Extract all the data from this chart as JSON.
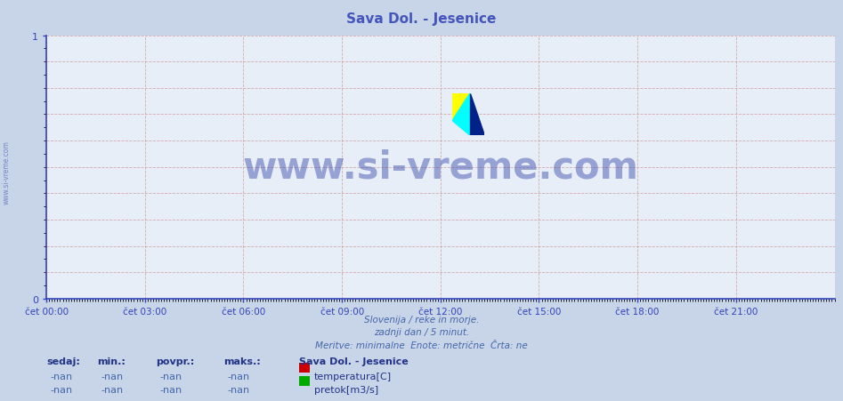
{
  "title": "Sava Dol. - Jesenice",
  "title_color": "#4455bb",
  "bg_color": "#c8d4e8",
  "plot_bg_color": "#e8eef8",
  "grid_color": "#cc9999",
  "grid_linestyle": "--",
  "xlim": [
    0,
    288
  ],
  "ylim": [
    0,
    1
  ],
  "yticks": [
    0,
    1
  ],
  "xtick_labels": [
    "čet 00:00",
    "čet 03:00",
    "čet 06:00",
    "čet 09:00",
    "čet 12:00",
    "čet 15:00",
    "čet 18:00",
    "čet 21:00"
  ],
  "xtick_positions": [
    0,
    36,
    72,
    108,
    144,
    180,
    216,
    252
  ],
  "axis_color": "#3344bb",
  "tick_color": "#3344bb",
  "watermark": "www.si-vreme.com",
  "watermark_color": "#3344aa",
  "side_text": "www.si-vreme.com",
  "subtitle_lines": [
    "Slovenija / reke in morje.",
    "zadnji dan / 5 minut.",
    "Meritve: minimalne  Enote: metrične  Črta: ne"
  ],
  "subtitle_color": "#4466aa",
  "legend_title": "Sava Dol. - Jesenice",
  "legend_title_color": "#223388",
  "legend_items": [
    {
      "label": "temperatura[C]",
      "color": "#cc0000"
    },
    {
      "label": "pretok[m3/s]",
      "color": "#00aa00"
    }
  ],
  "table_headers": [
    "sedaj:",
    "min.:",
    "povpr.:",
    "maks.:"
  ],
  "table_header_color": "#223388",
  "table_values": [
    "-nan",
    "-nan",
    "-nan",
    "-nan"
  ],
  "table_value_color": "#4466aa"
}
